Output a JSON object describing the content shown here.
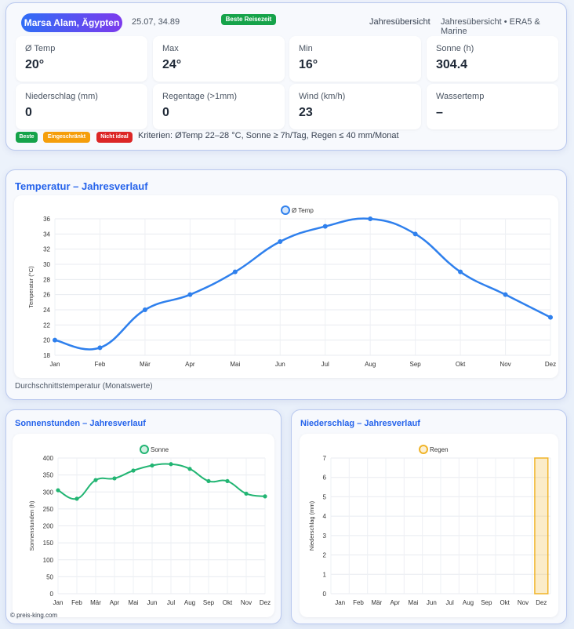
{
  "header": {
    "location": "Marsa Alam, Ägypten",
    "coordinates": "25.07, 34.89",
    "best_travel_badge": "Beste Reisezeit",
    "view_label": "Jahresübersicht",
    "source_label": "Jahresübersicht • ERA5 & Marine"
  },
  "stats": [
    {
      "label": "Ø Temp",
      "value": "20°"
    },
    {
      "label": "Max",
      "value": "24°"
    },
    {
      "label": "Min",
      "value": "16°"
    },
    {
      "label": "Sonne (h)",
      "value": "304.4"
    },
    {
      "label": "Niederschlag (mm)",
      "value": "0"
    },
    {
      "label": "Regentage (>1mm)",
      "value": "0"
    },
    {
      "label": "Wind (km/h)",
      "value": "23"
    },
    {
      "label": "Wassertemp",
      "value": "–"
    }
  ],
  "legend_badges": [
    {
      "label": "Beste",
      "color": "#16a34a"
    },
    {
      "label": "Eingeschränkt",
      "color": "#f59e0b"
    },
    {
      "label": "Nicht ideal",
      "color": "#dc2626"
    }
  ],
  "criteria": "Kriterien: ØTemp 22–28 °C, Sonne ≥ 7h/Tag, Regen ≤ 40 mm/Monat",
  "sections": {
    "temp_title": "Temperatur – Jahresverlauf",
    "temp_caption": "Durchschnittstemperatur (Monatswerte)",
    "sun_title": "Sonnenstunden – Jahresverlauf",
    "rain_title": "Niederschlag – Jahresverlauf"
  },
  "watermark": "© preis-king.com",
  "chart_data": [
    {
      "type": "line",
      "categories": [
        "Jan",
        "Feb",
        "Mär",
        "Apr",
        "Mai",
        "Jun",
        "Jul",
        "Aug",
        "Sep",
        "Okt",
        "Nov",
        "Dez"
      ],
      "series": [
        {
          "name": "Ø Temp",
          "values": [
            20,
            19,
            24,
            26,
            29,
            33,
            35,
            36,
            34,
            29,
            26,
            23
          ],
          "color": "#2f80ed"
        }
      ],
      "ylabel": "Temperatur (°C)",
      "ylim": [
        18,
        36
      ],
      "yticks": [
        18,
        20,
        22,
        24,
        26,
        28,
        30,
        32,
        34,
        36
      ],
      "legend": "top-center",
      "grid": true
    },
    {
      "type": "line",
      "categories": [
        "Jan",
        "Feb",
        "Mär",
        "Apr",
        "Mai",
        "Jun",
        "Jul",
        "Aug",
        "Sep",
        "Okt",
        "Nov",
        "Dez"
      ],
      "series": [
        {
          "name": "Sonne",
          "values": [
            305,
            280,
            335,
            340,
            363,
            378,
            382,
            368,
            332,
            332,
            295,
            287
          ],
          "color": "#22b573"
        }
      ],
      "ylabel": "Sonnenstunden (h)",
      "ylim": [
        0,
        400
      ],
      "yticks": [
        0,
        50,
        100,
        150,
        200,
        250,
        300,
        350,
        400
      ],
      "legend": "top-center",
      "grid": true
    },
    {
      "type": "bar",
      "categories": [
        "Jan",
        "Feb",
        "Mär",
        "Apr",
        "Mai",
        "Jun",
        "Jul",
        "Aug",
        "Sep",
        "Okt",
        "Nov",
        "Dez"
      ],
      "series": [
        {
          "name": "Regen",
          "values": [
            0,
            0,
            0,
            0,
            0,
            0,
            0,
            0,
            0,
            0,
            0,
            7
          ],
          "color": "#f0b429"
        }
      ],
      "ylabel": "Niederschlag (mm)",
      "ylim": [
        0,
        7
      ],
      "yticks": [
        0,
        1,
        2,
        3,
        4,
        5,
        6,
        7
      ],
      "legend": "top-center",
      "grid": true
    }
  ]
}
